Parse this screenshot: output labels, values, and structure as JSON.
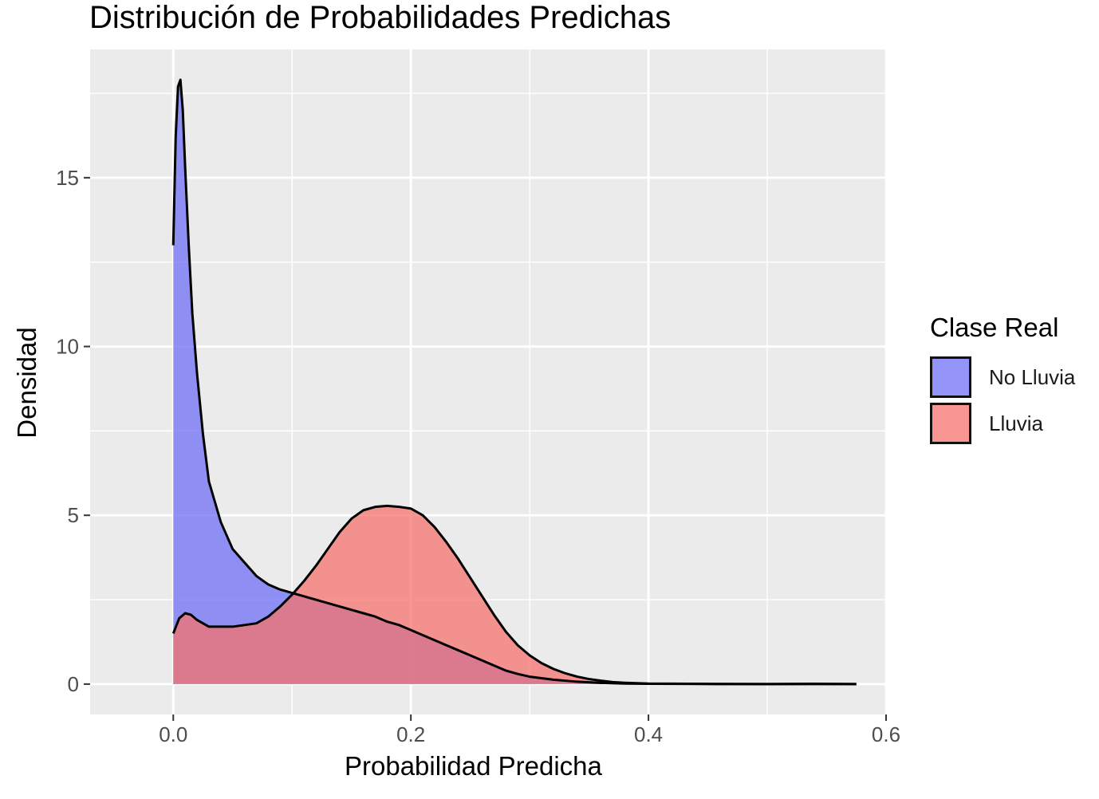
{
  "chart_data": {
    "type": "area",
    "title": "Distribución de Probabilidades Predichas",
    "xlabel": "Probabilidad Predicha",
    "ylabel": "Densidad",
    "xlim": [
      -0.07,
      0.6
    ],
    "ylim": [
      -0.9,
      18.8
    ],
    "x_ticks": [
      0.0,
      0.2,
      0.4,
      0.6
    ],
    "x_tick_labels": [
      "0.0",
      "0.2",
      "0.4",
      "0.6"
    ],
    "y_ticks": [
      0,
      5,
      10,
      15
    ],
    "y_tick_labels": [
      "0",
      "5",
      "10",
      "15"
    ],
    "grid": true,
    "legend_title": "Clase Real",
    "legend_position": "right",
    "series": [
      {
        "name": "No Lluvia",
        "color": "#6f6ff5",
        "fill_opacity": 0.75,
        "x": [
          0.0,
          0.002,
          0.004,
          0.006,
          0.008,
          0.01,
          0.013,
          0.016,
          0.02,
          0.025,
          0.03,
          0.04,
          0.05,
          0.06,
          0.07,
          0.08,
          0.09,
          0.1,
          0.11,
          0.12,
          0.13,
          0.14,
          0.15,
          0.16,
          0.17,
          0.18,
          0.19,
          0.2,
          0.21,
          0.22,
          0.23,
          0.24,
          0.25,
          0.26,
          0.27,
          0.28,
          0.29,
          0.3,
          0.32,
          0.34,
          0.36,
          0.38,
          0.4,
          0.45,
          0.5,
          0.55,
          0.575
        ],
        "y": [
          13.0,
          16.2,
          17.7,
          17.9,
          17.0,
          15.3,
          13.0,
          11.0,
          9.2,
          7.4,
          6.0,
          4.8,
          4.0,
          3.6,
          3.2,
          2.95,
          2.8,
          2.7,
          2.6,
          2.5,
          2.4,
          2.3,
          2.2,
          2.1,
          2.0,
          1.85,
          1.75,
          1.6,
          1.45,
          1.3,
          1.15,
          1.0,
          0.85,
          0.7,
          0.55,
          0.4,
          0.3,
          0.22,
          0.13,
          0.07,
          0.035,
          0.015,
          0.008,
          0.003,
          0.001,
          0.0,
          0.0
        ]
      },
      {
        "name": "Lluvia",
        "color": "#f4736e",
        "fill_opacity": 0.75,
        "x": [
          0.0,
          0.005,
          0.01,
          0.015,
          0.02,
          0.03,
          0.04,
          0.05,
          0.06,
          0.07,
          0.08,
          0.09,
          0.1,
          0.11,
          0.12,
          0.13,
          0.14,
          0.15,
          0.16,
          0.17,
          0.18,
          0.19,
          0.2,
          0.21,
          0.22,
          0.23,
          0.24,
          0.25,
          0.26,
          0.27,
          0.28,
          0.29,
          0.3,
          0.31,
          0.32,
          0.33,
          0.34,
          0.35,
          0.36,
          0.37,
          0.38,
          0.4,
          0.45,
          0.5,
          0.54,
          0.575
        ],
        "y": [
          1.5,
          1.95,
          2.1,
          2.05,
          1.9,
          1.7,
          1.7,
          1.7,
          1.75,
          1.8,
          2.0,
          2.3,
          2.65,
          3.05,
          3.5,
          4.0,
          4.5,
          4.9,
          5.15,
          5.25,
          5.28,
          5.25,
          5.2,
          5.0,
          4.65,
          4.2,
          3.7,
          3.15,
          2.6,
          2.05,
          1.55,
          1.15,
          0.85,
          0.62,
          0.45,
          0.32,
          0.22,
          0.15,
          0.1,
          0.06,
          0.04,
          0.015,
          0.005,
          0.002,
          0.01,
          0.0
        ]
      }
    ]
  }
}
